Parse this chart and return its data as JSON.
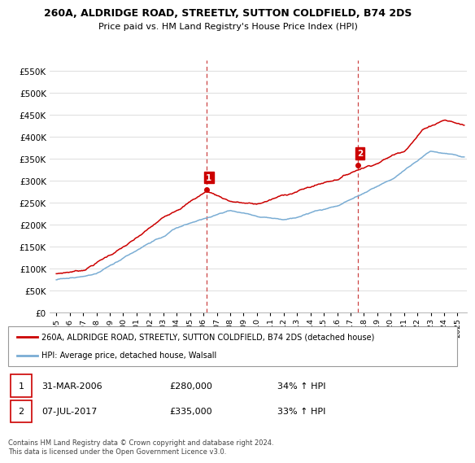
{
  "title": "260A, ALDRIDGE ROAD, STREETLY, SUTTON COLDFIELD, B74 2DS",
  "subtitle": "Price paid vs. HM Land Registry's House Price Index (HPI)",
  "legend_line1": "260A, ALDRIDGE ROAD, STREETLY, SUTTON COLDFIELD, B74 2DS (detached house)",
  "legend_line2": "HPI: Average price, detached house, Walsall",
  "transaction1_date": "31-MAR-2006",
  "transaction1_price": "£280,000",
  "transaction1_hpi": "34% ↑ HPI",
  "transaction2_date": "07-JUL-2017",
  "transaction2_price": "£335,000",
  "transaction2_hpi": "33% ↑ HPI",
  "footer": "Contains HM Land Registry data © Crown copyright and database right 2024.\nThis data is licensed under the Open Government Licence v3.0.",
  "red_color": "#cc0000",
  "blue_color": "#7aadd4",
  "marker1_x": 2006.25,
  "marker1_y": 280000,
  "marker2_x": 2017.55,
  "marker2_y": 335000,
  "ylim": [
    0,
    575000
  ],
  "xlim_start": 1994.5,
  "xlim_end": 2025.7,
  "yticks": [
    0,
    50000,
    100000,
    150000,
    200000,
    250000,
    300000,
    350000,
    400000,
    450000,
    500000,
    550000
  ],
  "xtick_years": [
    1995,
    1996,
    1997,
    1998,
    1999,
    2000,
    2001,
    2002,
    2003,
    2004,
    2005,
    2006,
    2007,
    2008,
    2009,
    2010,
    2011,
    2012,
    2013,
    2014,
    2015,
    2016,
    2017,
    2018,
    2019,
    2020,
    2021,
    2022,
    2023,
    2024,
    2025
  ]
}
